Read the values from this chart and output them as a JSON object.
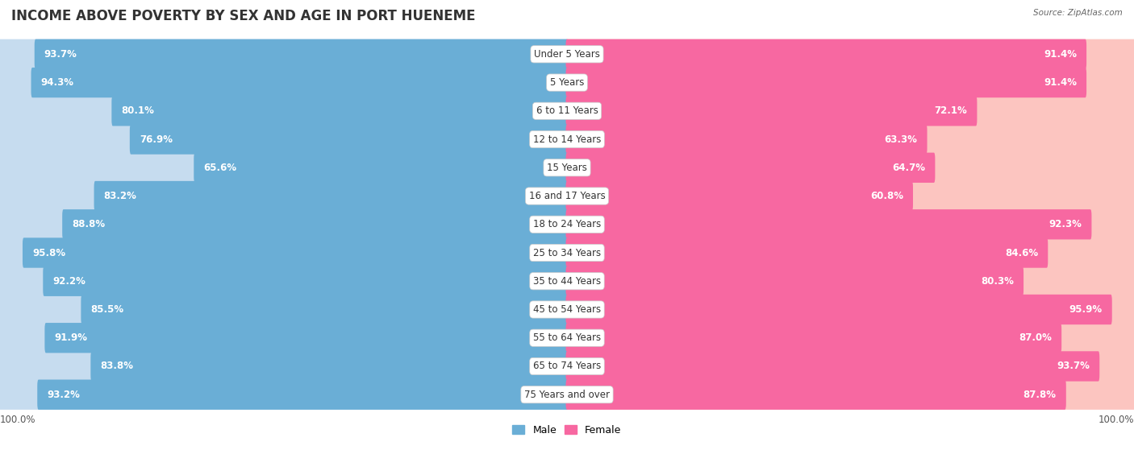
{
  "title": "INCOME ABOVE POVERTY BY SEX AND AGE IN PORT HUENEME",
  "source": "Source: ZipAtlas.com",
  "categories": [
    "Under 5 Years",
    "5 Years",
    "6 to 11 Years",
    "12 to 14 Years",
    "15 Years",
    "16 and 17 Years",
    "18 to 24 Years",
    "25 to 34 Years",
    "35 to 44 Years",
    "45 to 54 Years",
    "55 to 64 Years",
    "65 to 74 Years",
    "75 Years and over"
  ],
  "male_values": [
    93.7,
    94.3,
    80.1,
    76.9,
    65.6,
    83.2,
    88.8,
    95.8,
    92.2,
    85.5,
    91.9,
    83.8,
    93.2
  ],
  "female_values": [
    91.4,
    91.4,
    72.1,
    63.3,
    64.7,
    60.8,
    92.3,
    84.6,
    80.3,
    95.9,
    87.0,
    93.7,
    87.8
  ],
  "male_color": "#6aaed6",
  "female_color": "#f768a1",
  "male_light_color": "#c6dcef",
  "female_light_color": "#fcc5c0",
  "row_bg_even": "#efefef",
  "row_bg_odd": "#fafafa",
  "title_fontsize": 12,
  "label_fontsize": 8.5,
  "value_fontsize": 8.5,
  "axis_max": 100.0
}
